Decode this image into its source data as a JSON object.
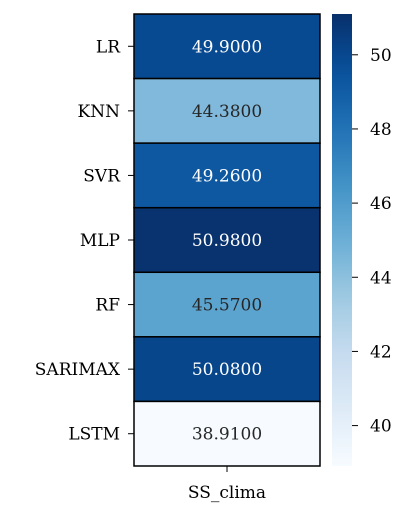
{
  "chart_data": {
    "type": "heatmap",
    "rows": [
      "LR",
      "KNN",
      "SVR",
      "MLP",
      "RF",
      "SARIMAX",
      "LSTM"
    ],
    "columns": [
      "SS_clima"
    ],
    "values": [
      [
        49.9
      ],
      [
        44.38
      ],
      [
        49.26
      ],
      [
        50.98
      ],
      [
        45.57
      ],
      [
        50.08
      ],
      [
        38.91
      ]
    ],
    "value_labels": [
      "49.9000",
      "44.3800",
      "49.2600",
      "50.9800",
      "45.5700",
      "50.0800",
      "38.9100"
    ],
    "colormap": "Blues",
    "vmin": 38.91,
    "vmax": 51.1,
    "colorbar_ticks": [
      40,
      42,
      44,
      46,
      48,
      50
    ],
    "colorbar_tick_labels": [
      "40",
      "42",
      "44",
      "46",
      "48",
      "50"
    ],
    "light_text_color": "#ffffff",
    "dark_text_color": "#262626"
  }
}
